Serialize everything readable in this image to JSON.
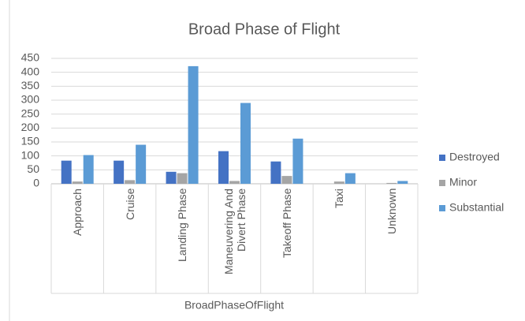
{
  "chart_data": {
    "type": "bar",
    "title": "Broad Phase of Flight",
    "x_label": "BroadPhaseOfFlight",
    "categories": [
      "Approach",
      "Cruise",
      "Landing Phase",
      "Maneuvering And Divert Phase",
      "Takeoff Phase",
      "Taxi",
      "Unknown"
    ],
    "series": [
      {
        "name": "Destroyed",
        "color": "#4472c4",
        "values": [
          83,
          83,
          43,
          117,
          80,
          0,
          0
        ]
      },
      {
        "name": "Minor",
        "color": "#a5a5a5",
        "values": [
          8,
          13,
          38,
          10,
          28,
          8,
          3
        ]
      },
      {
        "name": "Substantial",
        "color": "#5b9bd5",
        "values": [
          103,
          140,
          422,
          290,
          162,
          38,
          10
        ]
      }
    ],
    "ylim": [
      0,
      450
    ],
    "yticks": [
      0,
      50,
      100,
      150,
      200,
      250,
      300,
      350,
      400,
      450
    ],
    "grid": true,
    "legend": "right"
  }
}
